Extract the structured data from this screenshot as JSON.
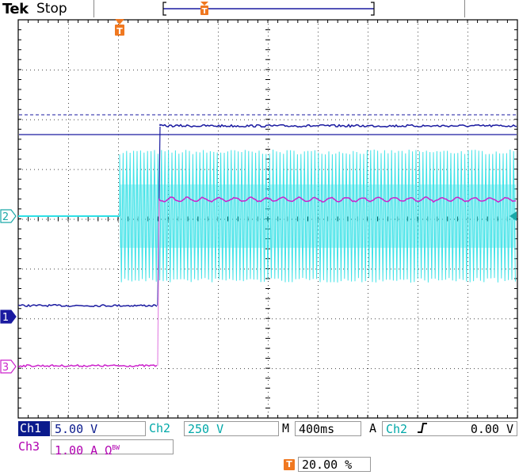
{
  "header": {
    "brand": "Tek",
    "status": "Stop"
  },
  "markers": {
    "trigger_glyph": "T",
    "ch2": "2",
    "ch1": "1",
    "ch3": "3"
  },
  "readouts": {
    "ch1": {
      "label": "Ch1",
      "scale": "5.00 V",
      "color": "#0a1a8c"
    },
    "ch2": {
      "label": "Ch2",
      "scale": "250 V",
      "color": "#00b2b2"
    },
    "ch3": {
      "label": "Ch3",
      "scale": "1.00 A",
      "suffix": "Ω",
      "bw": "BW",
      "color": "#b000b0"
    },
    "timebase": {
      "label": "M",
      "value": "400ms"
    },
    "trigger": {
      "mode": "A",
      "source": "Ch2",
      "slope": "rising-edge-icon",
      "level": "0.00 V"
    },
    "trigger_position": {
      "value": "20.00 %"
    }
  },
  "colors": {
    "ch1": "#1a1aa0",
    "ch2": "#2ee0e6",
    "ch3": "#cc22cc",
    "trigger": "#f07820",
    "grid": "#000000"
  }
}
